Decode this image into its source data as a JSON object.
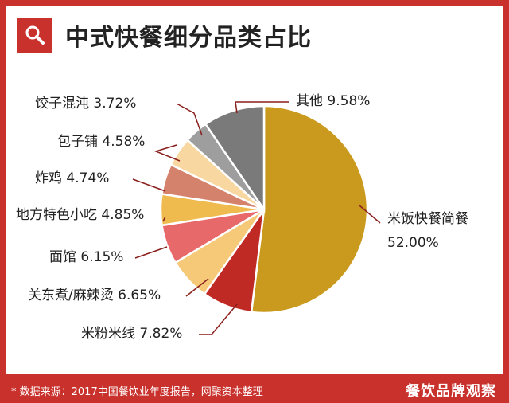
{
  "title": "中式快餐细分品类占比",
  "footer": {
    "source": "* 数据来源：2017中国餐饮业年度报告，网聚资本整理",
    "brand": "餐饮品牌观察"
  },
  "colors": {
    "frame": "#c9312c",
    "background": "#ffffff"
  },
  "chart_data": {
    "type": "pie",
    "title": "中式快餐细分品类占比",
    "slices": [
      {
        "label": "米饭快餐简餐",
        "value": 52.0,
        "display": "52.00%",
        "color": "#c99a1e"
      },
      {
        "label": "米粉米线",
        "value": 7.82,
        "display": "7.82%",
        "color": "#c02a24"
      },
      {
        "label": "关东煮/麻辣烫",
        "value": 6.65,
        "display": "6.65%",
        "color": "#f5c978"
      },
      {
        "label": "面馆",
        "value": 6.15,
        "display": "6.15%",
        "color": "#e8696a"
      },
      {
        "label": "地方特色小吃",
        "value": 4.85,
        "display": "4.85%",
        "color": "#efbb4f"
      },
      {
        "label": "炸鸡",
        "value": 4.74,
        "display": "4.74%",
        "color": "#d4826b"
      },
      {
        "label": "包子铺",
        "value": 4.58,
        "display": "4.58%",
        "color": "#f8d8a0"
      },
      {
        "label": "饺子混沌",
        "value": 3.72,
        "display": "3.72%",
        "color": "#9e9e9e"
      },
      {
        "label": "其他",
        "value": 9.58,
        "display": "9.58%",
        "color": "#7a7a7a"
      }
    ]
  }
}
